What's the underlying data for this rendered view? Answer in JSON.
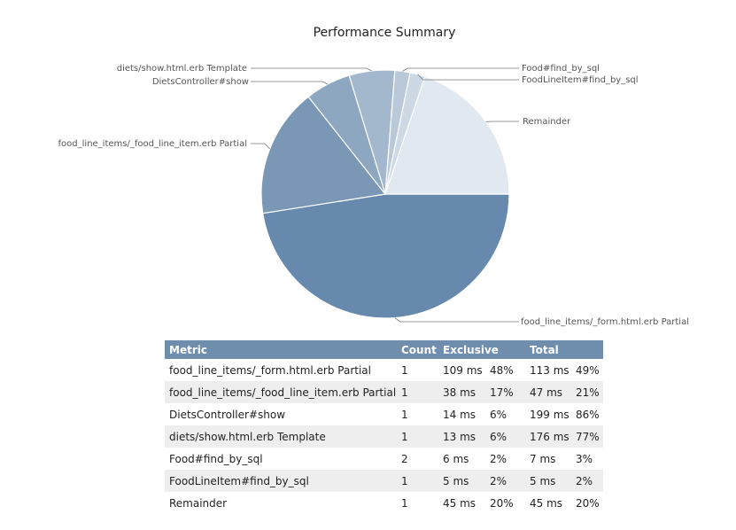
{
  "chart_data": {
    "type": "pie",
    "title": "Performance Summary",
    "series": [
      {
        "name": "food_line_items/_form.html.erb Partial",
        "value": 48,
        "color": "#6789ad"
      },
      {
        "name": "food_line_items/_food_line_item.erb Partial",
        "value": 17,
        "color": "#7a98b6"
      },
      {
        "name": "DietsController#show",
        "value": 6,
        "color": "#8ea7c1"
      },
      {
        "name": "diets/show.html.erb Template",
        "value": 6,
        "color": "#a4b8cd"
      },
      {
        "name": "Food#find_by_sql",
        "value": 2,
        "color": "#b9c9da"
      },
      {
        "name": "FoodLineItem#find_by_sql",
        "value": 2,
        "color": "#ccd8e4"
      },
      {
        "name": "Remainder",
        "value": 20,
        "color": "#e1e8ef"
      }
    ]
  },
  "table": {
    "headers": {
      "metric": "Metric",
      "count": "Count",
      "exclusive": "Exclusive",
      "total": "Total"
    },
    "rows": [
      {
        "metric": "food_line_items/_form.html.erb Partial",
        "count": "1",
        "ex_ms": "109 ms",
        "ex_pct": "48%",
        "tot_ms": "113 ms",
        "tot_pct": "49%"
      },
      {
        "metric": "food_line_items/_food_line_item.erb Partial",
        "count": "1",
        "ex_ms": "38 ms",
        "ex_pct": "17%",
        "tot_ms": "47 ms",
        "tot_pct": "21%"
      },
      {
        "metric": "DietsController#show",
        "count": "1",
        "ex_ms": "14 ms",
        "ex_pct": "6%",
        "tot_ms": "199 ms",
        "tot_pct": "86%"
      },
      {
        "metric": "diets/show.html.erb Template",
        "count": "1",
        "ex_ms": "13 ms",
        "ex_pct": "6%",
        "tot_ms": "176 ms",
        "tot_pct": "77%"
      },
      {
        "metric": "Food#find_by_sql",
        "count": "2",
        "ex_ms": "6 ms",
        "ex_pct": "2%",
        "tot_ms": "7 ms",
        "tot_pct": "3%"
      },
      {
        "metric": "FoodLineItem#find_by_sql",
        "count": "1",
        "ex_ms": "5 ms",
        "ex_pct": "2%",
        "tot_ms": "5 ms",
        "tot_pct": "2%"
      },
      {
        "metric": "Remainder",
        "count": "1",
        "ex_ms": "45 ms",
        "ex_pct": "20%",
        "tot_ms": "45 ms",
        "tot_pct": "20%"
      }
    ]
  }
}
